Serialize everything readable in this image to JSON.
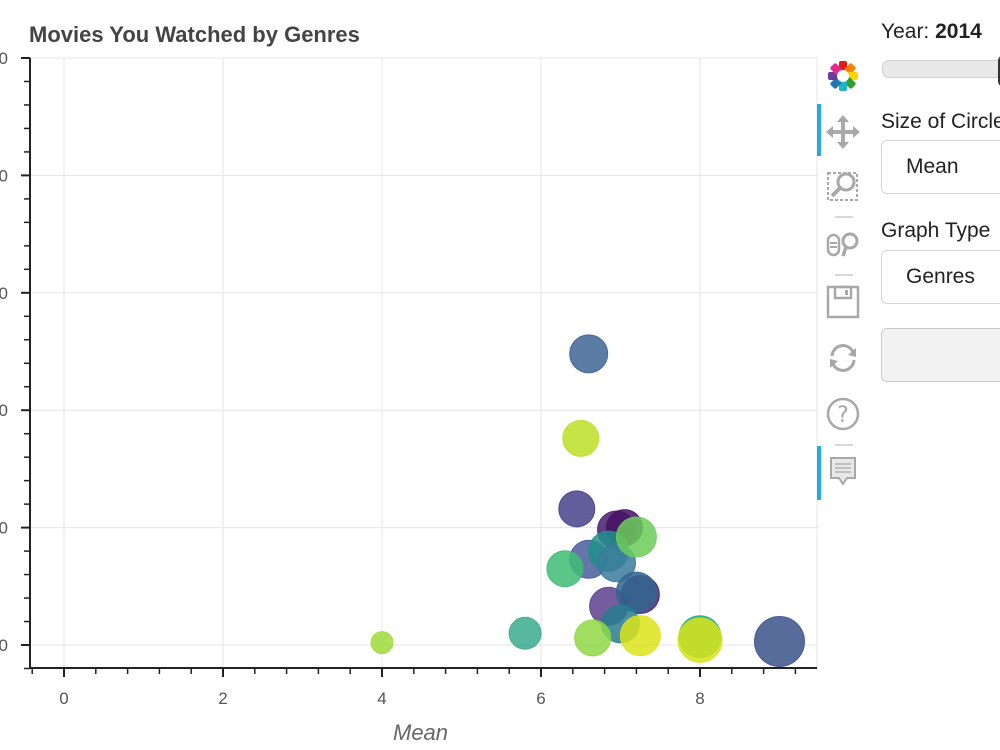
{
  "chart_data": {
    "type": "scatter",
    "title": "Movies You Watched by Genres",
    "xlabel": "Mean",
    "ylabel": "",
    "xlim": [
      -0.43,
      9.47
    ],
    "x_ticks": [
      0,
      2,
      4,
      6,
      8
    ],
    "x_tick_labels": [
      "0",
      "2",
      "4",
      "6",
      "8"
    ],
    "y_tick_labels_visible": [
      "0",
      "0",
      "0",
      "0",
      "0",
      "0"
    ],
    "y_tick_note": "Y tick labels are clipped at left edge; only trailing '0' of each label visible. Values given in units of major y-tick spacing (0 = bottom tick).",
    "ylim": [
      -0.2,
      5.0
    ],
    "grid": true,
    "legend": null,
    "bubble_encoding": "size = Mean, color = viridis palette",
    "points": [
      {
        "x": 4.0,
        "y": 0.02,
        "r": 11,
        "color": "#a0da39"
      },
      {
        "x": 5.8,
        "y": 0.1,
        "r": 16,
        "color": "#3aaa8e"
      },
      {
        "x": 6.6,
        "y": 2.48,
        "r": 19,
        "color": "#3e6594"
      },
      {
        "x": 6.5,
        "y": 1.76,
        "r": 18,
        "color": "#bddf26"
      },
      {
        "x": 6.45,
        "y": 1.16,
        "r": 18,
        "color": "#46418a"
      },
      {
        "x": 6.95,
        "y": 0.98,
        "r": 19,
        "color": "#481f70"
      },
      {
        "x": 7.05,
        "y": 1.0,
        "r": 18,
        "color": "#471164"
      },
      {
        "x": 6.6,
        "y": 0.73,
        "r": 19,
        "color": "#4a5c9b"
      },
      {
        "x": 6.85,
        "y": 0.8,
        "r": 20,
        "color": "#21918c"
      },
      {
        "x": 6.95,
        "y": 0.7,
        "r": 19,
        "color": "#3a7b9b"
      },
      {
        "x": 6.3,
        "y": 0.65,
        "r": 18,
        "color": "#3fbc73"
      },
      {
        "x": 7.2,
        "y": 0.92,
        "r": 20,
        "color": "#6ccd5a"
      },
      {
        "x": 6.85,
        "y": 0.33,
        "r": 19,
        "color": "#5c3f8e"
      },
      {
        "x": 7.25,
        "y": 0.43,
        "r": 19,
        "color": "#482677"
      },
      {
        "x": 7.2,
        "y": 0.45,
        "r": 20,
        "color": "#31668e"
      },
      {
        "x": 7.0,
        "y": 0.18,
        "r": 19,
        "color": "#287c8e"
      },
      {
        "x": 6.65,
        "y": 0.06,
        "r": 18,
        "color": "#8fd744"
      },
      {
        "x": 7.25,
        "y": 0.08,
        "r": 20,
        "color": "#dce319"
      },
      {
        "x": 8.0,
        "y": 0.07,
        "r": 21,
        "color": "#27ad81"
      },
      {
        "x": 8.0,
        "y": 0.04,
        "r": 22,
        "color": "#d8e219"
      },
      {
        "x": 9.0,
        "y": 0.03,
        "r": 25,
        "color": "#3b528b"
      }
    ]
  },
  "plot": {
    "title": "Movies You Watched by Genres",
    "x_axis_label": "Mean"
  },
  "toolbar": {
    "items": [
      {
        "name": "bokeh-logo",
        "active": false
      },
      {
        "name": "pan-tool",
        "active": true
      },
      {
        "name": "box-zoom-tool",
        "active": false
      },
      {
        "name": "wheel-zoom-tool",
        "active": false
      },
      {
        "name": "save-tool",
        "active": false
      },
      {
        "name": "reset-tool",
        "active": false
      },
      {
        "name": "help-tool",
        "active": false
      },
      {
        "name": "hover-tool",
        "active": true
      }
    ]
  },
  "widgets": {
    "year_label": "Year: ",
    "year_value": "2014",
    "size_label": "Size of Circles",
    "size_value": "Mean",
    "graph_type_label": "Graph Type",
    "graph_type_value": "Genres",
    "button_label": ""
  },
  "colors": {
    "toolbar_active": "#26aae1",
    "grid": "#e5e5e5",
    "axis": "#222222"
  }
}
